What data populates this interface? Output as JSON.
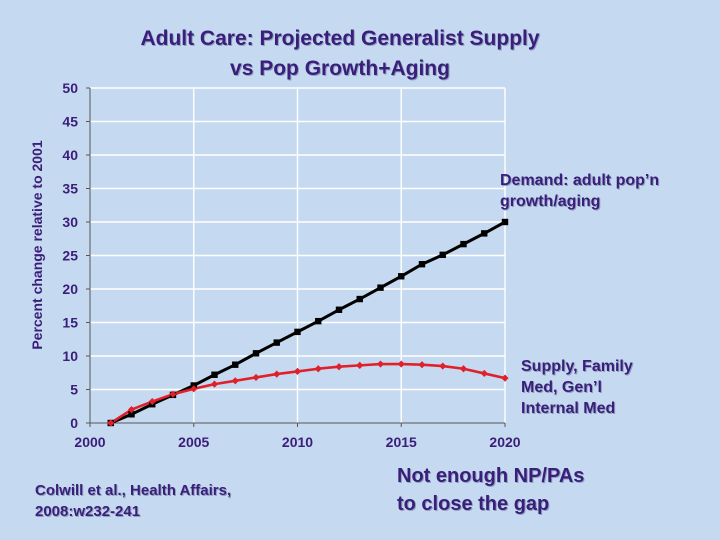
{
  "slide": {
    "title_line1": "Adult Care: Projected Generalist Supply",
    "title_line2": "vs Pop Growth+Aging",
    "citation_line1": "Colwill et al., Health Affairs,",
    "citation_line2": "2008:w232-241",
    "callout_line1": "Not enough NP/PAs",
    "callout_line2": "to close the gap"
  },
  "colors": {
    "background": "#c5daf0",
    "text": "#3b1d7a",
    "demand": "#000000",
    "supply": "#e0212b",
    "grid": "#ffffff"
  },
  "chart_data": {
    "type": "line",
    "title": "Adult Care: Projected Generalist Supply vs Pop Growth+Aging",
    "xlabel": "",
    "ylabel": "Percent change relative to 2001",
    "xlim": [
      2000,
      2020
    ],
    "ylim": [
      0,
      50
    ],
    "x_ticks": [
      "2000",
      "2005",
      "2010",
      "2015",
      "2020"
    ],
    "y_ticks": [
      "0",
      "5",
      "10",
      "15",
      "20",
      "25",
      "30",
      "35",
      "40",
      "45",
      "50"
    ],
    "grid": true,
    "x": [
      2001,
      2002,
      2003,
      2004,
      2005,
      2006,
      2007,
      2008,
      2009,
      2010,
      2011,
      2012,
      2013,
      2014,
      2015,
      2016,
      2017,
      2018,
      2019,
      2020
    ],
    "series": [
      {
        "name": "Demand",
        "label_line1": "Demand: adult pop’n",
        "label_line2": "growth/aging",
        "marker": "square",
        "values": [
          0,
          1.3,
          2.8,
          4.2,
          5.6,
          7.2,
          8.7,
          10.4,
          12.0,
          13.6,
          15.2,
          16.9,
          18.5,
          20.2,
          21.9,
          23.7,
          25.1,
          26.7,
          28.3,
          30.0
        ]
      },
      {
        "name": "Supply",
        "label_line1": "Supply, Family",
        "label_line2": "Med, Gen’l",
        "label_line3": "Internal Med",
        "marker": "diamond",
        "values": [
          0,
          2.0,
          3.2,
          4.3,
          5.1,
          5.8,
          6.3,
          6.8,
          7.3,
          7.7,
          8.1,
          8.4,
          8.6,
          8.8,
          8.8,
          8.7,
          8.5,
          8.1,
          7.4,
          6.7
        ]
      }
    ]
  }
}
